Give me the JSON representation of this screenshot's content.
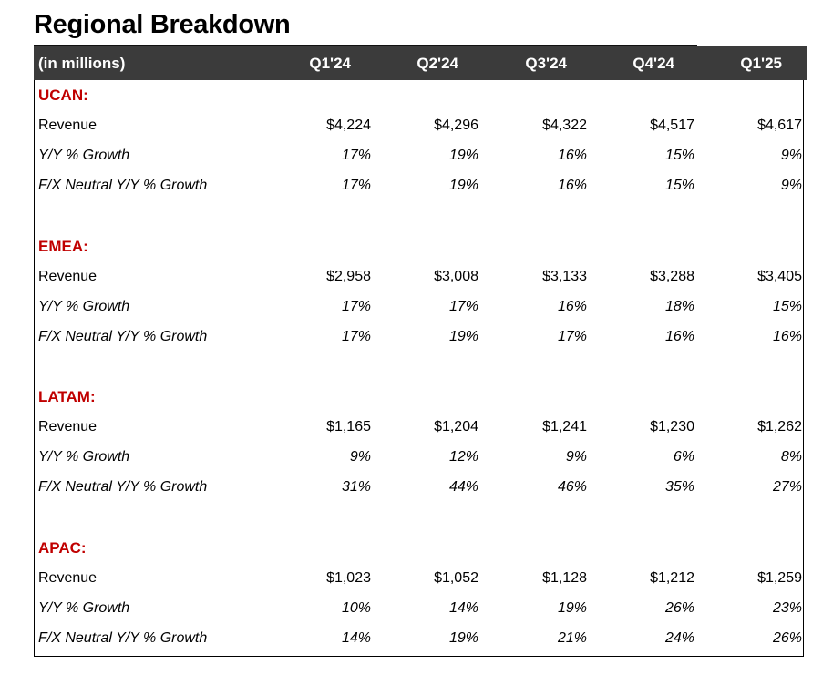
{
  "title": "Regional Breakdown",
  "header": {
    "label": "(in millions)",
    "quarters": [
      "Q1'24",
      "Q2'24",
      "Q3'24",
      "Q4'24",
      "Q1'25"
    ]
  },
  "sections": [
    {
      "name": "UCAN:",
      "rows": [
        {
          "label": "Revenue",
          "values": [
            "$4,224",
            "$4,296",
            "$4,322",
            "$4,517",
            "$4,617"
          ]
        },
        {
          "label": "Y/Y % Growth",
          "values": [
            "17%",
            "19%",
            "16%",
            "15%",
            "9%"
          ]
        },
        {
          "label": "F/X Neutral Y/Y % Growth",
          "values": [
            "17%",
            "19%",
            "16%",
            "15%",
            "9%"
          ]
        }
      ]
    },
    {
      "name": "EMEA:",
      "rows": [
        {
          "label": "Revenue",
          "values": [
            "$2,958",
            "$3,008",
            "$3,133",
            "$3,288",
            "$3,405"
          ]
        },
        {
          "label": "Y/Y % Growth",
          "values": [
            "17%",
            "17%",
            "16%",
            "18%",
            "15%"
          ]
        },
        {
          "label": "F/X Neutral Y/Y % Growth",
          "values": [
            "17%",
            "19%",
            "17%",
            "16%",
            "16%"
          ]
        }
      ]
    },
    {
      "name": "LATAM:",
      "rows": [
        {
          "label": "Revenue",
          "values": [
            "$1,165",
            "$1,204",
            "$1,241",
            "$1,230",
            "$1,262"
          ]
        },
        {
          "label": "Y/Y % Growth",
          "values": [
            "9%",
            "12%",
            "9%",
            "6%",
            "8%"
          ]
        },
        {
          "label": "F/X Neutral Y/Y % Growth",
          "values": [
            "31%",
            "44%",
            "46%",
            "35%",
            "27%"
          ]
        }
      ]
    },
    {
      "name": "APAC:",
      "rows": [
        {
          "label": "Revenue",
          "values": [
            "$1,023",
            "$1,052",
            "$1,128",
            "$1,212",
            "$1,259"
          ]
        },
        {
          "label": "Y/Y % Growth",
          "values": [
            "10%",
            "14%",
            "19%",
            "26%",
            "23%"
          ]
        },
        {
          "label": "F/X Neutral Y/Y % Growth",
          "values": [
            "14%",
            "19%",
            "21%",
            "24%",
            "26%"
          ]
        }
      ]
    }
  ],
  "colors": {
    "header_background": "#3b3b3b",
    "section_label": "#c00000"
  }
}
